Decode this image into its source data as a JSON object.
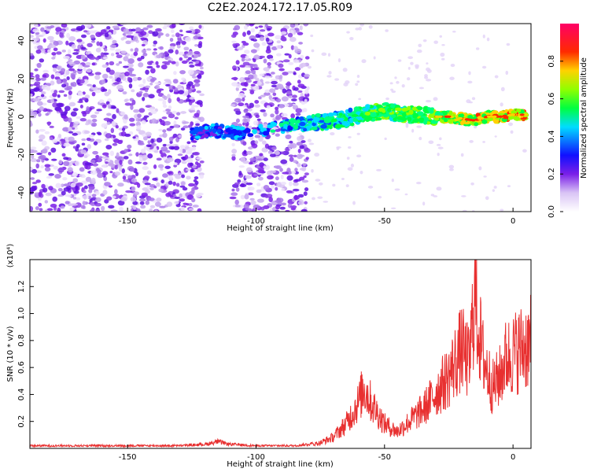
{
  "title": "C2E2.2024.172.17.05.R09",
  "chart_data": [
    {
      "type": "heatmap",
      "xlabel": "Height of straight line (km)",
      "ylabel": "Frequency (Hz)",
      "xlim": [
        -188,
        7
      ],
      "ylim": [
        -50,
        49
      ],
      "x_ticks": [
        -150,
        -100,
        -50,
        0
      ],
      "y_ticks": [
        -40,
        -20,
        0,
        20,
        40
      ],
      "grid": false,
      "colorbar": {
        "label": "Normalized spectral amplitude",
        "range": [
          0,
          1
        ],
        "ticks": [
          "0.0",
          "0.2",
          "0.4",
          "0.6",
          "0.8"
        ],
        "colormap": [
          "#ffffff",
          "#c8a8f0",
          "#7a1fe8",
          "#0000ff",
          "#00dcff",
          "#00ff40",
          "#c8ff00",
          "#ffd200",
          "#ff2a00",
          "#ff0066"
        ]
      },
      "trace": {
        "x": [
          -125,
          -118,
          -112,
          -106,
          -100,
          -95,
          -90,
          -85,
          -80,
          -75,
          -70,
          -65,
          -60,
          -55,
          -50,
          -45,
          -40,
          -35,
          -30,
          -25,
          -20,
          -15,
          -10,
          -5,
          0,
          5
        ],
        "y": [
          -9,
          -7,
          -8,
          -9,
          -8,
          -7,
          -5,
          -4,
          -4,
          -3,
          -2,
          -1,
          1,
          2,
          3,
          2,
          1,
          1,
          0,
          0,
          -1,
          -2,
          0,
          0,
          1,
          1
        ]
      },
      "noise_regions": [
        [
          -188,
          -121
        ],
        [
          -109,
          -80
        ]
      ]
    },
    {
      "type": "line",
      "xlabel": "Height of straight line (km)",
      "ylabel": "SNR (10 * v/v)",
      "y_multiplier": "(x10⁴)",
      "xlim": [
        -188,
        7
      ],
      "ylim": [
        0,
        1.4
      ],
      "x_ticks": [
        -150,
        -100,
        -50,
        0
      ],
      "y_ticks": [
        0.2,
        0.4,
        0.6,
        0.8,
        1.0,
        1.2
      ],
      "y_tick_labels": [
        "0.2",
        "0.4",
        "0.6",
        "0.8",
        "1.0",
        "1.2"
      ],
      "color": "#e83030",
      "series": [
        {
          "x": [
            -188,
            -180,
            -170,
            -160,
            -150,
            -140,
            -130,
            -120,
            -115,
            -110,
            -100,
            -90,
            -85,
            -80,
            -75,
            -70,
            -65,
            -60,
            -58,
            -55,
            -50,
            -45,
            -40,
            -35,
            -30,
            -25,
            -20,
            -17,
            -15,
            -12,
            -10,
            -8,
            -5,
            -3,
            0,
            3,
            7
          ],
          "y": [
            0.02,
            0.02,
            0.02,
            0.02,
            0.02,
            0.02,
            0.02,
            0.03,
            0.05,
            0.03,
            0.02,
            0.02,
            0.02,
            0.03,
            0.05,
            0.1,
            0.22,
            0.42,
            0.55,
            0.4,
            0.22,
            0.15,
            0.25,
            0.35,
            0.5,
            0.65,
            0.9,
            0.75,
            1.38,
            0.85,
            0.7,
            0.55,
            0.65,
            0.8,
            0.85,
            0.9,
            0.95
          ]
        }
      ]
    }
  ]
}
